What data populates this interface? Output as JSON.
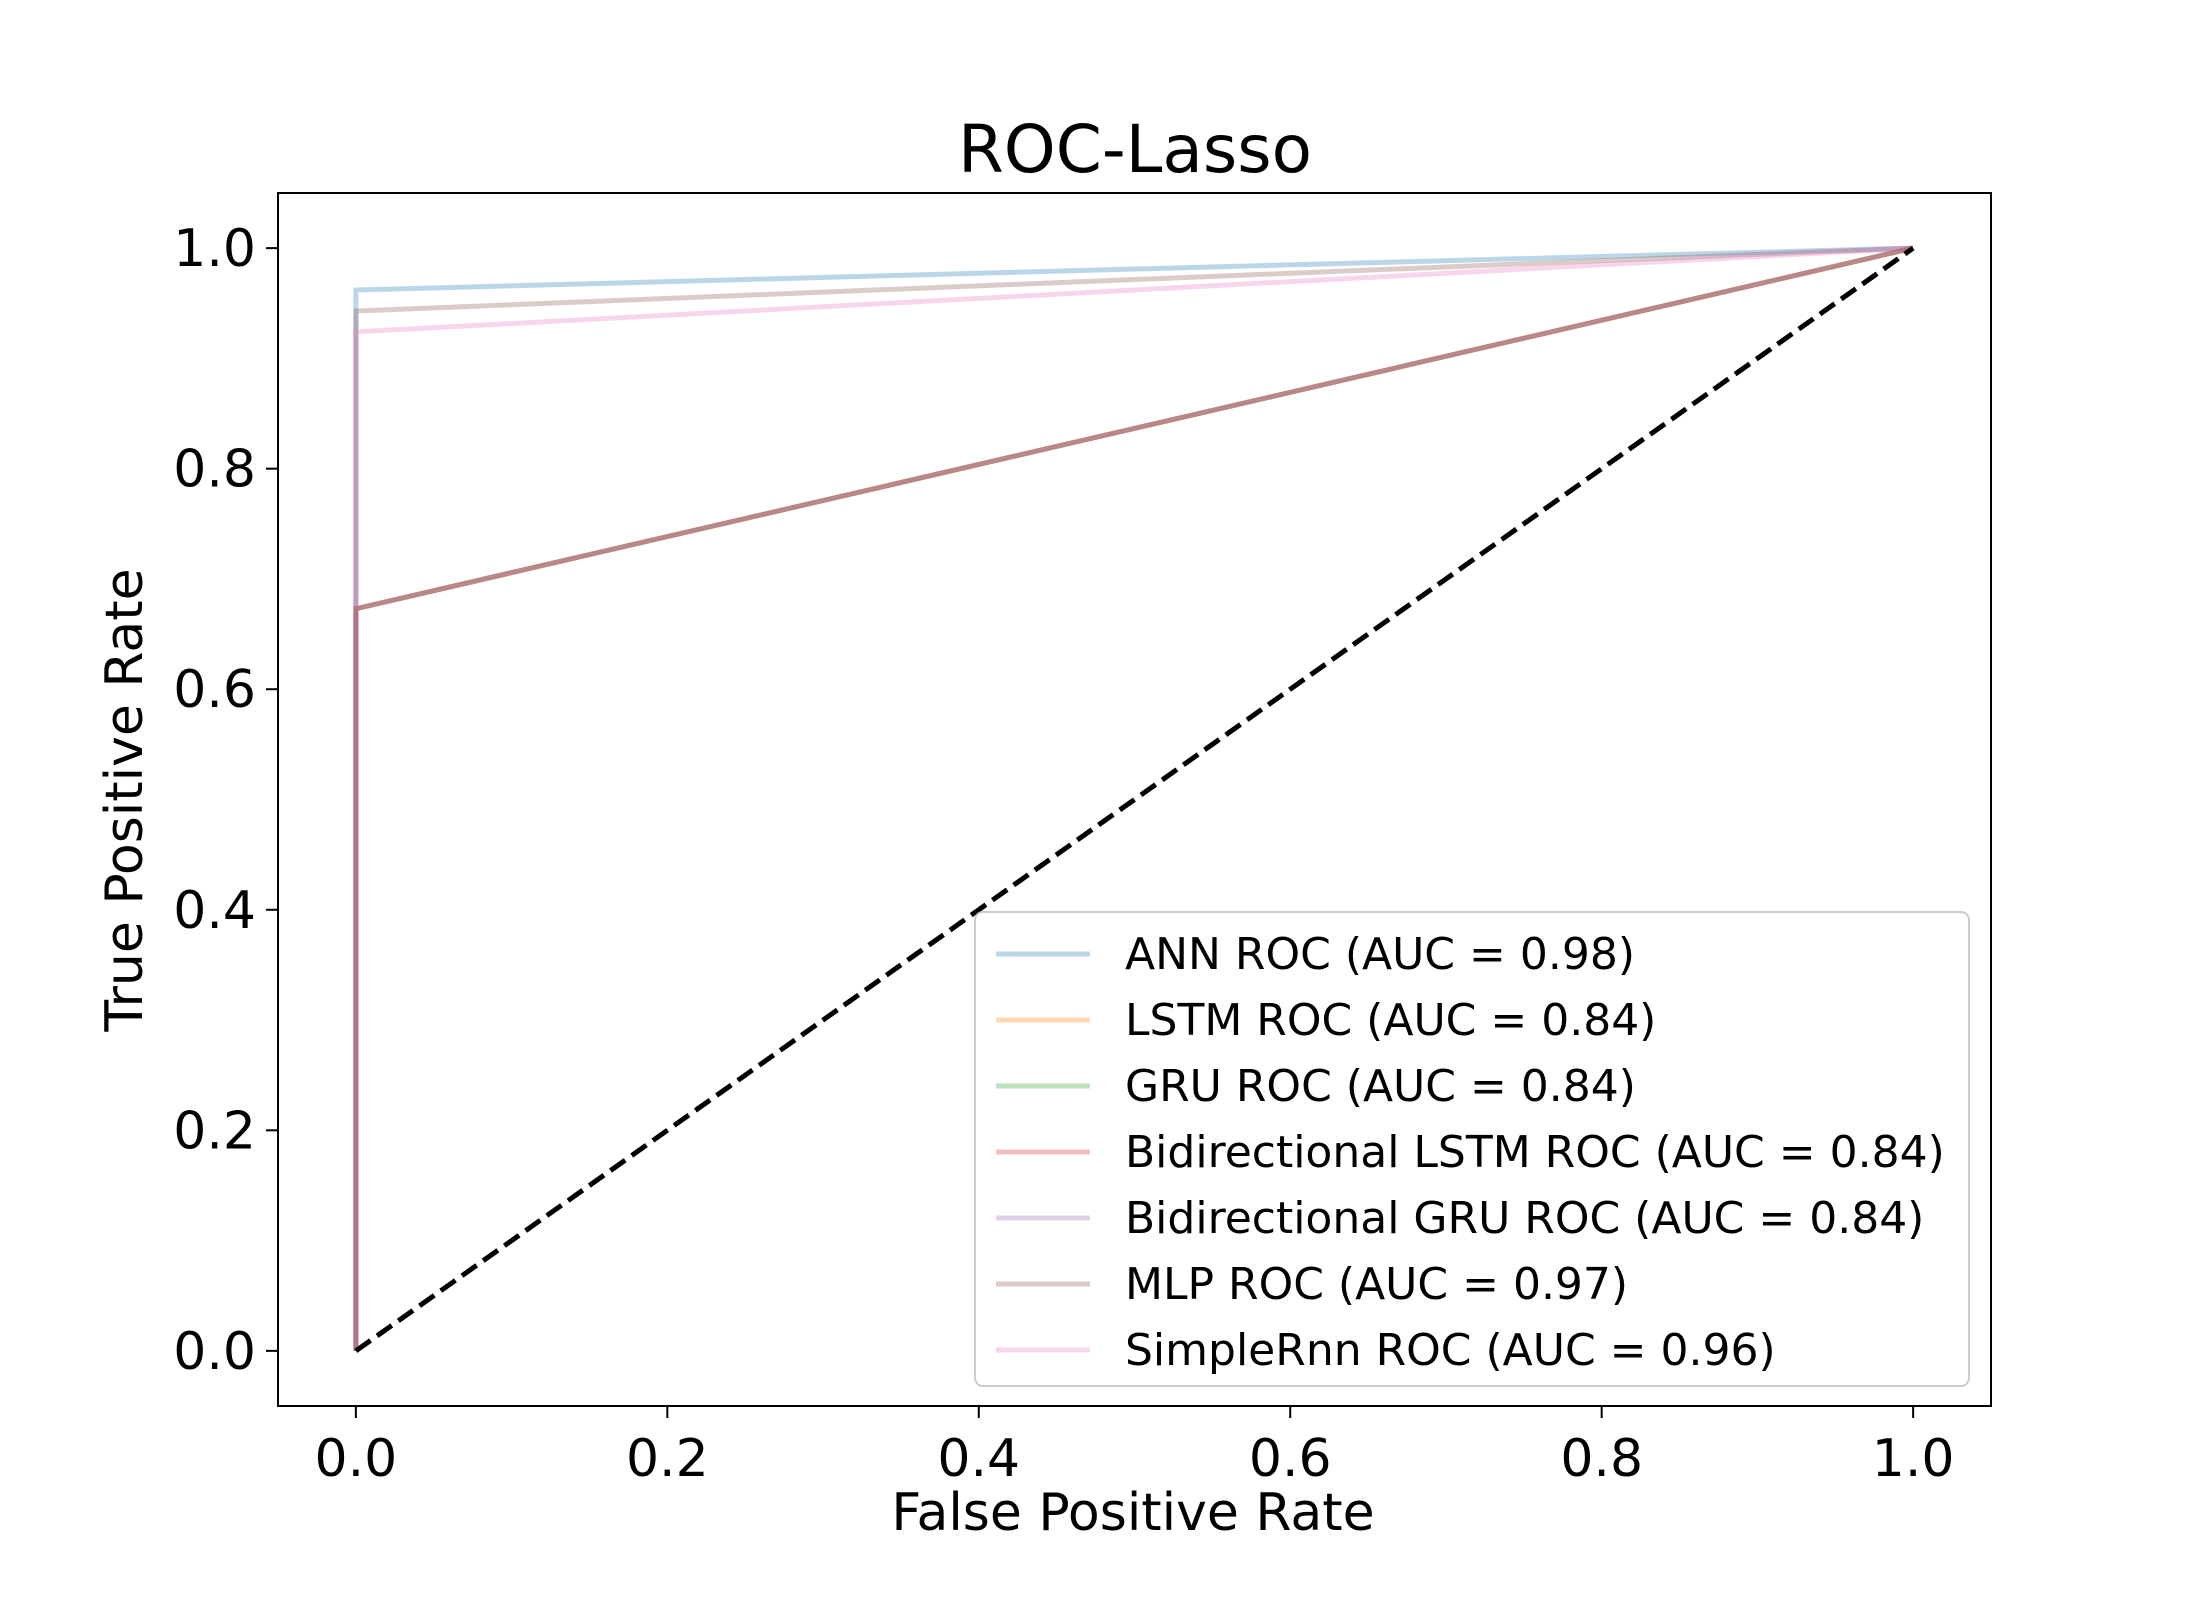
{
  "chart_data": {
    "type": "line",
    "title": "ROC-Lasso",
    "xlabel": "False Positive Rate",
    "ylabel": "True Positive Rate",
    "xlim": [
      -0.05,
      1.05
    ],
    "ylim": [
      -0.05,
      1.05
    ],
    "xticks": [
      "0.0",
      "0.2",
      "0.4",
      "0.6",
      "0.8",
      "1.0"
    ],
    "yticks": [
      "0.0",
      "0.2",
      "0.4",
      "0.6",
      "0.8",
      "1.0"
    ],
    "grid": false,
    "legend_position": "lower right",
    "series": [
      {
        "name": "ANN ROC (AUC = 0.98)",
        "color": "#1f77b4",
        "opacity": 0.3,
        "x": [
          0,
          0,
          1
        ],
        "y": [
          0,
          0.962,
          1
        ]
      },
      {
        "name": "LSTM ROC (AUC = 0.84)",
        "color": "#ff7f0e",
        "opacity": 0.3,
        "x": [
          0,
          0,
          1
        ],
        "y": [
          0,
          0.673,
          1
        ]
      },
      {
        "name": "GRU ROC (AUC = 0.84)",
        "color": "#2ca02c",
        "opacity": 0.3,
        "x": [
          0,
          0,
          1
        ],
        "y": [
          0,
          0.673,
          1
        ]
      },
      {
        "name": "Bidirectional LSTM ROC (AUC = 0.84)",
        "color": "#d62728",
        "opacity": 0.3,
        "x": [
          0,
          0,
          1
        ],
        "y": [
          0,
          0.673,
          1
        ]
      },
      {
        "name": "Bidirectional GRU ROC (AUC = 0.84)",
        "color": "#9467bd",
        "opacity": 0.3,
        "x": [
          0,
          0,
          1
        ],
        "y": [
          0,
          0.673,
          1
        ]
      },
      {
        "name": "MLP ROC (AUC = 0.97)",
        "color": "#8c564b",
        "opacity": 0.3,
        "x": [
          0,
          0,
          1
        ],
        "y": [
          0,
          0.943,
          1
        ]
      },
      {
        "name": "SimpleRnn ROC (AUC = 0.96)",
        "color": "#e377c2",
        "opacity": 0.3,
        "x": [
          0,
          0,
          1
        ],
        "y": [
          0,
          0.924,
          1
        ]
      }
    ],
    "reference_line": {
      "color": "#000000",
      "style": "dashed",
      "x": [
        0,
        1
      ],
      "y": [
        0,
        1
      ]
    }
  }
}
